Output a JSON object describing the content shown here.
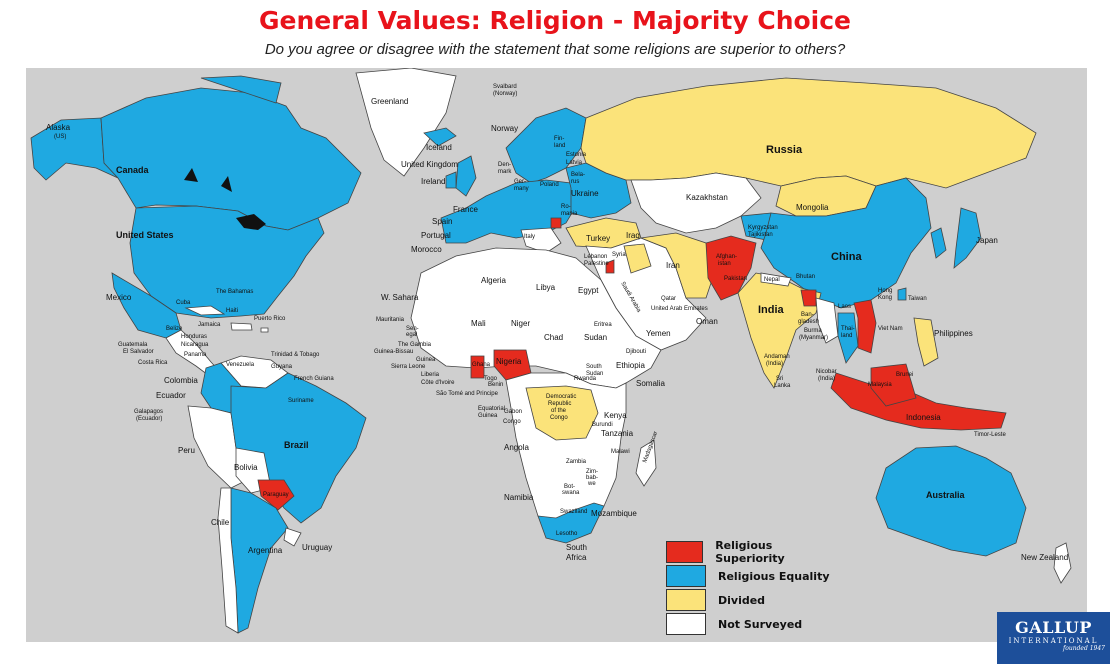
{
  "title": "General Values: Religion - Majority Choice",
  "subtitle": "Do you agree or disagree with the statement that some religions are superior to others?",
  "colors": {
    "superiority": "#e52b1e",
    "equality": "#1fa9e1",
    "divided": "#fbe37a",
    "not_surveyed": "#ffffff",
    "ocean": "#cfcfcf"
  },
  "legend": {
    "superiority": "Religious Superiority",
    "equality": "Religious Equality",
    "divided": "Divided",
    "not_surveyed": "Not Surveyed"
  },
  "logo": {
    "main": "GALLUP",
    "sub": "INTERNATIONAL",
    "tag": "founded 1947"
  },
  "labels": {
    "alaska": "Alaska",
    "alaska_us": "(US)",
    "canada": "Canada",
    "united_states": "United States",
    "mexico": "Mexico",
    "greenland": "Greenland",
    "iceland": "Iceland",
    "svalbard": "Svalbard",
    "svalbard_norway": "(Norway)",
    "norway": "Norway",
    "united_kingdom": "United Kingdom",
    "ireland": "Ireland",
    "denmark": "Den-",
    "denmark2": "mark",
    "germany": "Ger-",
    "germany2": "many",
    "poland": "Poland",
    "france": "France",
    "spain": "Spain",
    "portugal": "Portugal",
    "italy": "Italy",
    "ukraine": "Ukraine",
    "belarus": "Bela-",
    "belarus2": "rus",
    "finland": "Fin-",
    "finland2": "land",
    "estonia": "Estonia",
    "latvia": "Latvia",
    "romania": "Ro-",
    "romania2": "mania",
    "turkey": "Turkey",
    "russia": "Russia",
    "kazakhstan": "Kazakhstan",
    "mongolia": "Mongolia",
    "china": "China",
    "japan": "Japan",
    "kyrgyzstan": "Kyrgyzstan",
    "tajikistan": "Tajikistan",
    "afghanistan": "Afghan-",
    "afghanistan2": "istan",
    "pakistan": "Pakistan",
    "iran": "Iran",
    "iraq": "Iraq",
    "syria": "Syria",
    "lebanon": "Lebanon",
    "palestine": "Palestine",
    "nepal": "Nepal",
    "india": "India",
    "bhutan": "Bhutan",
    "bangladesh": "Ban-",
    "bangladesh2": "gladesh",
    "burma": "Burma",
    "burma2": "(Myanmar)",
    "laos": "Laos",
    "thailand": "Thai-",
    "thailand2": "land",
    "vietnam": "Viet Nam",
    "taiwan": "Taiwan",
    "hong_kong": "Hong",
    "hong_kong2": "Kong",
    "philippines": "Philippines",
    "andaman": "Andaman",
    "andaman2": "(India)",
    "nicobar": "Nicobar",
    "nicobar2": "(India)",
    "sri_lanka": "Sri",
    "sri_lanka2": "Lanka",
    "malaysia": "Malaysia",
    "brunei": "Brunei",
    "indonesia": "Indonesia",
    "timor_leste": "Timor-Leste",
    "australia": "Australia",
    "new_zealand": "New Zealand",
    "morocco": "Morocco",
    "algeria": "Algeria",
    "libya": "Libya",
    "egypt": "Egypt",
    "w_sahara": "W. Sahara",
    "mauritania": "Mauritania",
    "mali": "Mali",
    "niger": "Niger",
    "chad": "Chad",
    "sudan": "Sudan",
    "eritrea": "Eritrea",
    "senegal": "Sen-",
    "senegal2": "egal",
    "the_gambia": "The Gambia",
    "guinea_bissau": "Guinea-Bissau",
    "guinea": "Guinea",
    "sierra_leone": "Sierra Leone",
    "liberia": "Liberia",
    "cote_divoire": "Côte d'Ivoire",
    "sao_tome": "São Tomé and Principe",
    "ghana": "Ghana",
    "togo": "Togo",
    "benin": "Benin",
    "nigeria": "Nigeria",
    "equatorial_guinea": "Equatorial",
    "equatorial_guinea2": "Guinea",
    "gabon": "Gabon",
    "congo": "Congo",
    "drc": "Democratic",
    "drc2": "Republic",
    "drc3": "of the",
    "drc4": "Congo",
    "south_sudan": "South",
    "south_sudan2": "Sudan",
    "ethiopia": "Ethiopia",
    "somalia": "Somalia",
    "kenya": "Kenya",
    "tanzania": "Tanzania",
    "angola": "Angola",
    "zambia": "Zambia",
    "zimbabwe": "Zim-",
    "zimbabwe2": "bab-",
    "zimbabwe3": "we",
    "namibia": "Namibia",
    "botswana": "Bot-",
    "botswana2": "swana",
    "mozambique": "Mozambique",
    "madagascar": "Madagascar",
    "south_africa": "South",
    "south_africa2": "Africa",
    "swaziland": "Swaziland",
    "lesotho": "Lesotho",
    "oman": "Oman",
    "yemen": "Yemen",
    "saudi_arabia": "Saudi Arabia",
    "qatar": "Qatar",
    "uae": "United Arab Emirates",
    "the_bahamas": "The Bahamas",
    "cuba": "Cuba",
    "haiti": "Haiti",
    "puerto_rico": "Puerto Rico",
    "belize": "Belize",
    "guatemala": "Guatemala",
    "honduras": "Honduras",
    "el_salvador": "El Salvador",
    "nicaragua": "Nicaragua",
    "costa_rica": "Costa Rica",
    "panama": "Panama",
    "jamaica": "Jamaica",
    "trinidad": "Trinidad & Tobago",
    "venezuela": "Venezuela",
    "guyana": "Guyana",
    "french_guiana": "French Guiana",
    "suriname": "Suriname",
    "colombia": "Colombia",
    "ecuador": "Ecuador",
    "galapagos": "Galapagos",
    "galapagos2": "(Ecuador)",
    "peru": "Peru",
    "brazil": "Brazil",
    "bolivia": "Bolivia",
    "paraguay": "Paraguay",
    "chile": "Chile",
    "argentina": "Argentina",
    "uruguay": "Uruguay",
    "burundi": "Burundi",
    "rwanda": "Rwanda",
    "malawi": "Malawi",
    "djibouti": "Djibouti"
  }
}
